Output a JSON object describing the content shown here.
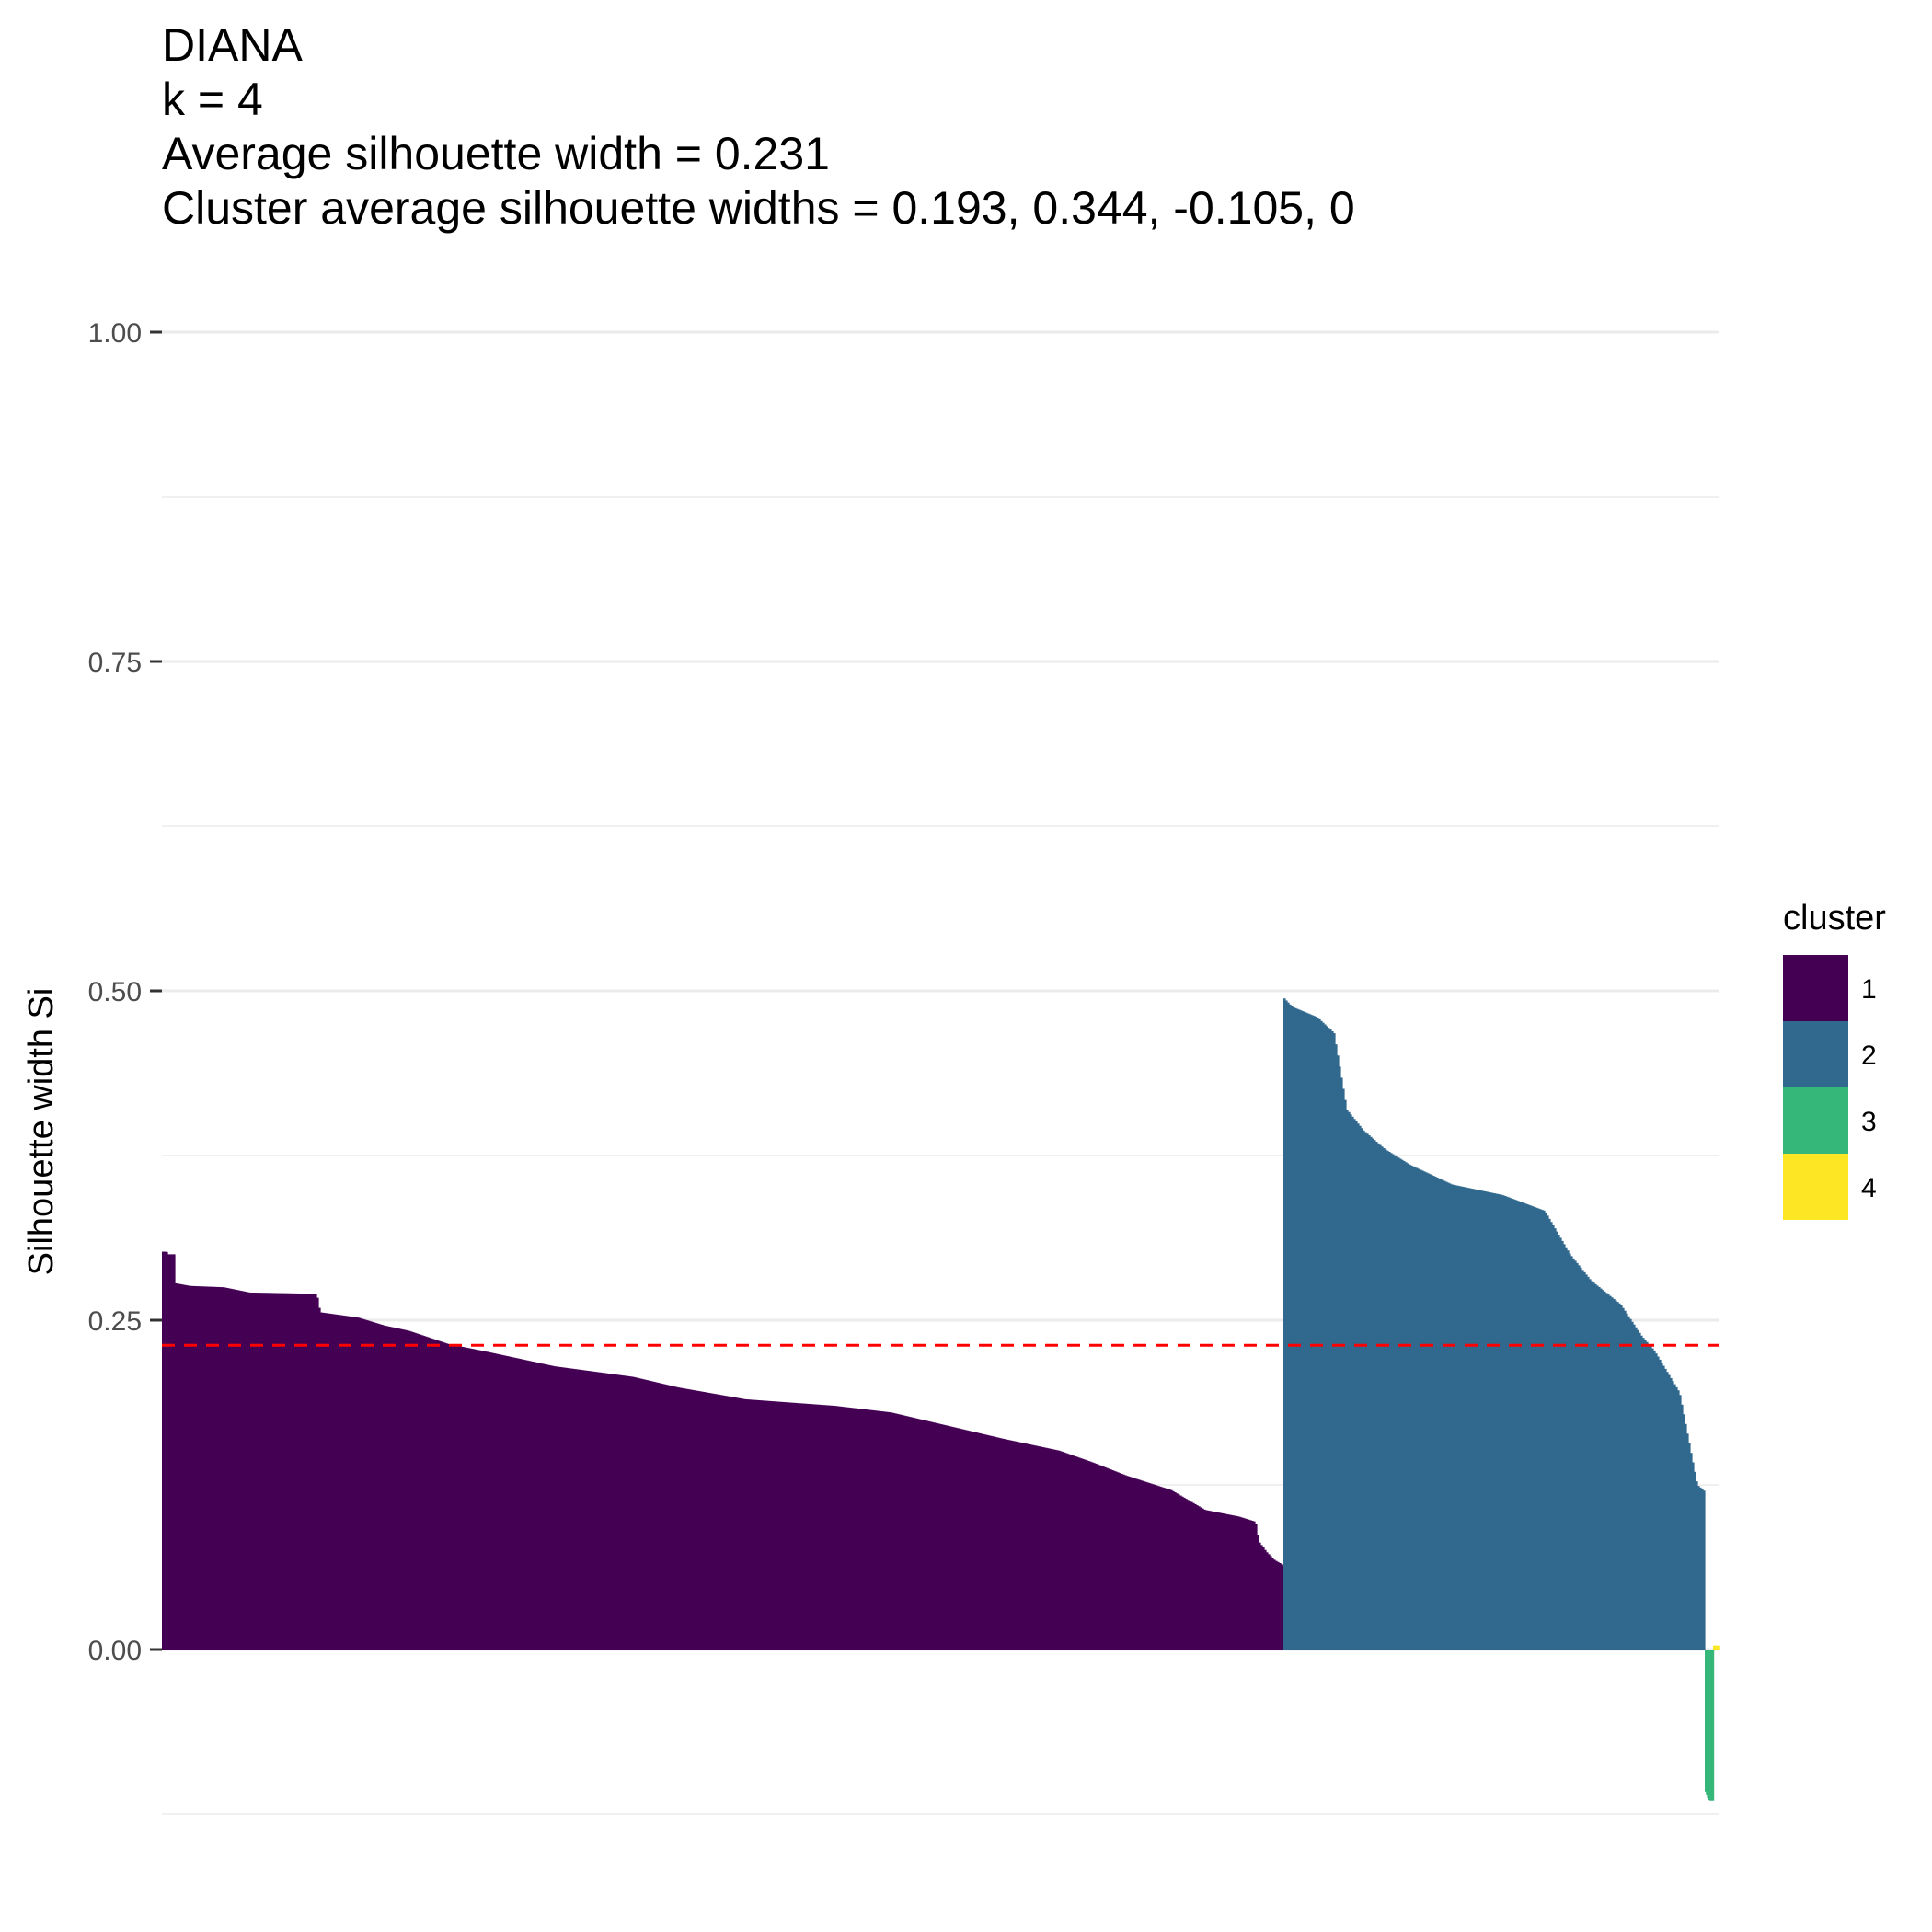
{
  "chart_data": {
    "type": "bar",
    "title_lines": [
      "DIANA",
      "k = 4",
      "Average silhouette width = 0.231",
      "Cluster average silhouette widths = 0.193, 0.344, -0.105, 0"
    ],
    "xlabel": "",
    "ylabel": "Silhouette width Si",
    "ylim": [
      -0.125,
      1.0
    ],
    "yticks": [
      {
        "value": 0.0,
        "label": "0.00"
      },
      {
        "value": 0.25,
        "label": "0.25"
      },
      {
        "value": 0.5,
        "label": "0.50"
      },
      {
        "value": 0.75,
        "label": "0.75"
      },
      {
        "value": 1.0,
        "label": "1.00"
      }
    ],
    "minor_gridlines": [
      -0.125,
      0.125,
      0.375,
      0.625,
      0.875
    ],
    "grid": true,
    "average_line": {
      "value": 0.231,
      "color": "#ff0000",
      "style": "dashed"
    },
    "legend": {
      "title": "cluster",
      "placement": "right"
    },
    "series": [
      {
        "name": "1",
        "color": "#440154",
        "profile": [
          [
            0,
            0.302
          ],
          [
            0.004,
            0.302
          ],
          [
            0.005,
            0.3
          ],
          [
            0.011,
            0.3
          ],
          [
            0.012,
            0.278
          ],
          [
            0.025,
            0.276
          ],
          [
            0.055,
            0.275
          ],
          [
            0.078,
            0.271
          ],
          [
            0.138,
            0.27
          ],
          [
            0.141,
            0.256
          ],
          [
            0.175,
            0.252
          ],
          [
            0.198,
            0.246
          ],
          [
            0.22,
            0.242
          ],
          [
            0.255,
            0.232
          ],
          [
            0.29,
            0.226
          ],
          [
            0.35,
            0.215
          ],
          [
            0.42,
            0.207
          ],
          [
            0.46,
            0.199
          ],
          [
            0.52,
            0.19
          ],
          [
            0.6,
            0.185
          ],
          [
            0.65,
            0.18
          ],
          [
            0.7,
            0.17
          ],
          [
            0.75,
            0.16
          ],
          [
            0.8,
            0.151
          ],
          [
            0.83,
            0.142
          ],
          [
            0.86,
            0.132
          ],
          [
            0.9,
            0.121
          ],
          [
            0.918,
            0.112
          ],
          [
            0.93,
            0.106
          ],
          [
            0.96,
            0.101
          ],
          [
            0.975,
            0.097
          ],
          [
            0.978,
            0.082
          ],
          [
            0.985,
            0.074
          ],
          [
            0.992,
            0.068
          ],
          [
            1.0,
            0.064
          ]
        ]
      },
      {
        "name": "2",
        "color": "#31688e",
        "profile": [
          [
            0,
            0.495
          ],
          [
            0.02,
            0.488
          ],
          [
            0.08,
            0.48
          ],
          [
            0.12,
            0.468
          ],
          [
            0.15,
            0.41
          ],
          [
            0.19,
            0.394
          ],
          [
            0.24,
            0.38
          ],
          [
            0.3,
            0.368
          ],
          [
            0.4,
            0.353
          ],
          [
            0.52,
            0.345
          ],
          [
            0.62,
            0.333
          ],
          [
            0.68,
            0.3
          ],
          [
            0.73,
            0.28
          ],
          [
            0.8,
            0.262
          ],
          [
            0.85,
            0.238
          ],
          [
            0.88,
            0.227
          ],
          [
            0.91,
            0.211
          ],
          [
            0.94,
            0.195
          ],
          [
            0.965,
            0.153
          ],
          [
            0.982,
            0.125
          ],
          [
            1.0,
            0.12
          ]
        ]
      },
      {
        "name": "3",
        "color": "#35b779",
        "profile": [
          [
            0,
            -0.107
          ],
          [
            0.5,
            -0.115
          ],
          [
            1.0,
            -0.115
          ]
        ]
      },
      {
        "name": "4",
        "color": "#fde725",
        "profile": [
          [
            0,
            0.003
          ],
          [
            1.0,
            0.003
          ]
        ]
      }
    ]
  }
}
